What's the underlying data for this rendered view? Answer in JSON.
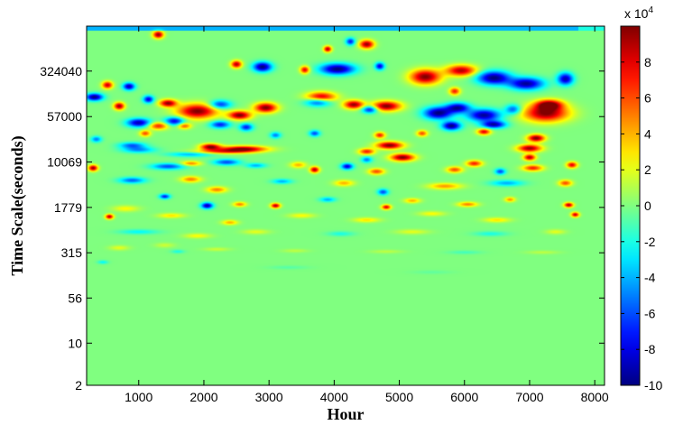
{
  "chart_data": {
    "type": "heatmap",
    "title": "",
    "xlabel": "Hour",
    "ylabel": "Time Scale(seconds)",
    "xlim": [
      200,
      8150
    ],
    "x_ticks": [
      1000,
      2000,
      3000,
      4000,
      5000,
      6000,
      7000,
      8000
    ],
    "x_tick_labels": [
      "1000",
      "2000",
      "3000",
      "4000",
      "5000",
      "6000",
      "7000",
      "8000"
    ],
    "y_scale": "log",
    "ylim": [
      2,
      1800000
    ],
    "y_ticks": [
      2,
      10,
      56,
      315,
      1779,
      10069,
      57000,
      324040
    ],
    "y_tick_labels": [
      "2",
      "10",
      "56",
      "315",
      "1779",
      "10069",
      "57000",
      "324040"
    ],
    "colorbar": {
      "colormap": "jet",
      "range": [
        -100000,
        100000
      ],
      "ticks": [
        8,
        6,
        4,
        2,
        0,
        -2,
        -4,
        -6,
        -8,
        -10
      ],
      "tick_labels": [
        "8",
        "6",
        "4",
        "2",
        "0",
        "-2",
        "-4",
        "-6",
        "-8",
        "-10"
      ],
      "multiplier_base": "x 10",
      "multiplier_exp": "4"
    },
    "background_value": 0,
    "blobs": [
      {
        "x": 1300,
        "y": 1300000,
        "rx": 80,
        "ry": 0.06,
        "v": 95000
      },
      {
        "x": 4500,
        "y": 900000,
        "rx": 110,
        "ry": 0.07,
        "v": 95000
      },
      {
        "x": 4250,
        "y": 1000000,
        "rx": 70,
        "ry": 0.06,
        "v": -70000
      },
      {
        "x": 3900,
        "y": 750000,
        "rx": 60,
        "ry": 0.05,
        "v": 90000
      },
      {
        "x": 2500,
        "y": 420000,
        "rx": 80,
        "ry": 0.06,
        "v": 90000
      },
      {
        "x": 2900,
        "y": 380000,
        "rx": 140,
        "ry": 0.08,
        "v": -100000
      },
      {
        "x": 3550,
        "y": 340000,
        "rx": 70,
        "ry": 0.06,
        "v": 80000
      },
      {
        "x": 4050,
        "y": 350000,
        "rx": 260,
        "ry": 0.09,
        "v": -100000
      },
      {
        "x": 4700,
        "y": 390000,
        "rx": 70,
        "ry": 0.06,
        "v": -80000
      },
      {
        "x": 5400,
        "y": 260000,
        "rx": 230,
        "ry": 0.12,
        "v": 100000
      },
      {
        "x": 5950,
        "y": 330000,
        "rx": 230,
        "ry": 0.09,
        "v": 90000
      },
      {
        "x": 6450,
        "y": 250000,
        "rx": 250,
        "ry": 0.11,
        "v": -100000
      },
      {
        "x": 6950,
        "y": 200000,
        "rx": 260,
        "ry": 0.1,
        "v": -95000
      },
      {
        "x": 7550,
        "y": 240000,
        "rx": 120,
        "ry": 0.1,
        "v": -90000
      },
      {
        "x": 5850,
        "y": 150000,
        "rx": 80,
        "ry": 0.06,
        "v": 70000
      },
      {
        "x": 850,
        "y": 180000,
        "rx": 90,
        "ry": 0.06,
        "v": -90000
      },
      {
        "x": 520,
        "y": 190000,
        "rx": 80,
        "ry": 0.06,
        "v": 85000
      },
      {
        "x": 320,
        "y": 120000,
        "rx": 130,
        "ry": 0.06,
        "v": -100000
      },
      {
        "x": 1150,
        "y": 110000,
        "rx": 80,
        "ry": 0.06,
        "v": -80000
      },
      {
        "x": 700,
        "y": 85000,
        "rx": 80,
        "ry": 0.06,
        "v": 95000
      },
      {
        "x": 1450,
        "y": 95000,
        "rx": 130,
        "ry": 0.06,
        "v": 95000
      },
      {
        "x": 1900,
        "y": 70000,
        "rx": 300,
        "ry": 0.12,
        "v": 100000
      },
      {
        "x": 2250,
        "y": 90000,
        "rx": 160,
        "ry": 0.07,
        "v": -70000
      },
      {
        "x": 2550,
        "y": 60000,
        "rx": 170,
        "ry": 0.07,
        "v": 100000
      },
      {
        "x": 2950,
        "y": 80000,
        "rx": 170,
        "ry": 0.08,
        "v": 100000
      },
      {
        "x": 3750,
        "y": 100000,
        "rx": 190,
        "ry": 0.07,
        "v": -70000
      },
      {
        "x": 3800,
        "y": 120000,
        "rx": 220,
        "ry": 0.08,
        "v": 90000
      },
      {
        "x": 4300,
        "y": 90000,
        "rx": 150,
        "ry": 0.07,
        "v": 95000
      },
      {
        "x": 4800,
        "y": 85000,
        "rx": 220,
        "ry": 0.08,
        "v": 100000
      },
      {
        "x": 4550,
        "y": 75000,
        "rx": 120,
        "ry": 0.06,
        "v": -80000
      },
      {
        "x": 5600,
        "y": 65000,
        "rx": 220,
        "ry": 0.1,
        "v": -100000
      },
      {
        "x": 5900,
        "y": 80000,
        "rx": 180,
        "ry": 0.08,
        "v": -90000
      },
      {
        "x": 6300,
        "y": 60000,
        "rx": 250,
        "ry": 0.1,
        "v": -95000
      },
      {
        "x": 5800,
        "y": 40000,
        "rx": 140,
        "ry": 0.07,
        "v": -100000
      },
      {
        "x": 6450,
        "y": 42000,
        "rx": 180,
        "ry": 0.06,
        "v": -90000
      },
      {
        "x": 6300,
        "y": 32000,
        "rx": 100,
        "ry": 0.05,
        "v": 80000
      },
      {
        "x": 7250,
        "y": 65000,
        "rx": 340,
        "ry": 0.14,
        "v": 100000
      },
      {
        "x": 7300,
        "y": 90000,
        "rx": 200,
        "ry": 0.08,
        "v": 95000
      },
      {
        "x": 6750,
        "y": 75000,
        "rx": 120,
        "ry": 0.08,
        "v": -60000
      },
      {
        "x": 1000,
        "y": 45000,
        "rx": 180,
        "ry": 0.07,
        "v": -90000
      },
      {
        "x": 1550,
        "y": 48000,
        "rx": 150,
        "ry": 0.07,
        "v": -80000
      },
      {
        "x": 1300,
        "y": 40000,
        "rx": 150,
        "ry": 0.06,
        "v": 70000
      },
      {
        "x": 1700,
        "y": 40000,
        "rx": 100,
        "ry": 0.05,
        "v": 60000
      },
      {
        "x": 2250,
        "y": 42000,
        "rx": 150,
        "ry": 0.06,
        "v": -70000
      },
      {
        "x": 2650,
        "y": 38000,
        "rx": 100,
        "ry": 0.06,
        "v": -70000
      },
      {
        "x": 1100,
        "y": 30000,
        "rx": 80,
        "ry": 0.05,
        "v": 60000
      },
      {
        "x": 3100,
        "y": 28000,
        "rx": 80,
        "ry": 0.05,
        "v": -50000
      },
      {
        "x": 3700,
        "y": 30000,
        "rx": 80,
        "ry": 0.05,
        "v": -60000
      },
      {
        "x": 4700,
        "y": 28000,
        "rx": 80,
        "ry": 0.05,
        "v": 70000
      },
      {
        "x": 5350,
        "y": 30000,
        "rx": 80,
        "ry": 0.05,
        "v": 60000
      },
      {
        "x": 7100,
        "y": 25000,
        "rx": 130,
        "ry": 0.06,
        "v": 100000
      },
      {
        "x": 7000,
        "y": 17000,
        "rx": 180,
        "ry": 0.06,
        "v": 95000
      },
      {
        "x": 7000,
        "y": 12000,
        "rx": 90,
        "ry": 0.05,
        "v": 90000
      },
      {
        "x": 350,
        "y": 24000,
        "rx": 80,
        "ry": 0.05,
        "v": -50000
      },
      {
        "x": 2100,
        "y": 18000,
        "rx": 150,
        "ry": 0.05,
        "v": 95000
      },
      {
        "x": 2600,
        "y": 16500,
        "rx": 350,
        "ry": 0.05,
        "v": 100000
      },
      {
        "x": 2250,
        "y": 15000,
        "rx": 400,
        "ry": 0.04,
        "v": 55000
      },
      {
        "x": 1800,
        "y": 13500,
        "rx": 350,
        "ry": 0.04,
        "v": -40000
      },
      {
        "x": 1000,
        "y": 16000,
        "rx": 250,
        "ry": 0.05,
        "v": -45000
      },
      {
        "x": 900,
        "y": 19000,
        "rx": 200,
        "ry": 0.05,
        "v": -55000
      },
      {
        "x": 4850,
        "y": 19000,
        "rx": 200,
        "ry": 0.06,
        "v": 100000
      },
      {
        "x": 5050,
        "y": 12000,
        "rx": 180,
        "ry": 0.06,
        "v": 100000
      },
      {
        "x": 4500,
        "y": 15000,
        "rx": 120,
        "ry": 0.05,
        "v": 70000
      },
      {
        "x": 4500,
        "y": 11000,
        "rx": 80,
        "ry": 0.05,
        "v": -50000
      },
      {
        "x": 1450,
        "y": 8500,
        "rx": 250,
        "ry": 0.05,
        "v": -60000
      },
      {
        "x": 1800,
        "y": 9500,
        "rx": 150,
        "ry": 0.04,
        "v": 50000
      },
      {
        "x": 2350,
        "y": 10000,
        "rx": 200,
        "ry": 0.05,
        "v": -60000
      },
      {
        "x": 2800,
        "y": 8800,
        "rx": 150,
        "ry": 0.04,
        "v": -40000
      },
      {
        "x": 300,
        "y": 8000,
        "rx": 70,
        "ry": 0.05,
        "v": 95000
      },
      {
        "x": 3450,
        "y": 9000,
        "rx": 120,
        "ry": 0.05,
        "v": 40000
      },
      {
        "x": 3700,
        "y": 7500,
        "rx": 70,
        "ry": 0.05,
        "v": 90000
      },
      {
        "x": 4200,
        "y": 8500,
        "rx": 90,
        "ry": 0.05,
        "v": -80000
      },
      {
        "x": 4650,
        "y": 7000,
        "rx": 120,
        "ry": 0.05,
        "v": 60000
      },
      {
        "x": 5850,
        "y": 7500,
        "rx": 120,
        "ry": 0.05,
        "v": 60000
      },
      {
        "x": 6150,
        "y": 9500,
        "rx": 120,
        "ry": 0.05,
        "v": 70000
      },
      {
        "x": 6550,
        "y": 7000,
        "rx": 80,
        "ry": 0.05,
        "v": -60000
      },
      {
        "x": 7050,
        "y": 8000,
        "rx": 150,
        "ry": 0.05,
        "v": 70000
      },
      {
        "x": 7650,
        "y": 9000,
        "rx": 80,
        "ry": 0.05,
        "v": 80000
      },
      {
        "x": 900,
        "y": 5000,
        "rx": 200,
        "ry": 0.05,
        "v": -55000
      },
      {
        "x": 1800,
        "y": 5200,
        "rx": 150,
        "ry": 0.05,
        "v": 50000
      },
      {
        "x": 2200,
        "y": 3500,
        "rx": 150,
        "ry": 0.05,
        "v": 50000
      },
      {
        "x": 3200,
        "y": 4800,
        "rx": 150,
        "ry": 0.04,
        "v": -40000
      },
      {
        "x": 4150,
        "y": 4500,
        "rx": 150,
        "ry": 0.05,
        "v": 40000
      },
      {
        "x": 4750,
        "y": 3200,
        "rx": 80,
        "ry": 0.05,
        "v": -60000
      },
      {
        "x": 5700,
        "y": 4000,
        "rx": 250,
        "ry": 0.05,
        "v": 45000
      },
      {
        "x": 6650,
        "y": 4500,
        "rx": 250,
        "ry": 0.05,
        "v": -40000
      },
      {
        "x": 7550,
        "y": 4500,
        "rx": 100,
        "ry": 0.05,
        "v": 60000
      },
      {
        "x": 1400,
        "y": 2700,
        "rx": 80,
        "ry": 0.04,
        "v": -70000
      },
      {
        "x": 2050,
        "y": 1900,
        "rx": 90,
        "ry": 0.05,
        "v": -90000
      },
      {
        "x": 2550,
        "y": 2000,
        "rx": 100,
        "ry": 0.04,
        "v": 50000
      },
      {
        "x": 3100,
        "y": 1900,
        "rx": 70,
        "ry": 0.04,
        "v": 90000
      },
      {
        "x": 3900,
        "y": 2400,
        "rx": 120,
        "ry": 0.04,
        "v": -40000
      },
      {
        "x": 4800,
        "y": 1800,
        "rx": 70,
        "ry": 0.04,
        "v": 80000
      },
      {
        "x": 5200,
        "y": 2300,
        "rx": 120,
        "ry": 0.04,
        "v": 40000
      },
      {
        "x": 6050,
        "y": 2000,
        "rx": 150,
        "ry": 0.04,
        "v": 50000
      },
      {
        "x": 6700,
        "y": 2400,
        "rx": 80,
        "ry": 0.04,
        "v": 45000
      },
      {
        "x": 7600,
        "y": 1950,
        "rx": 70,
        "ry": 0.04,
        "v": 90000
      },
      {
        "x": 550,
        "y": 1250,
        "rx": 60,
        "ry": 0.04,
        "v": 90000
      },
      {
        "x": 7700,
        "y": 1350,
        "rx": 60,
        "ry": 0.04,
        "v": 85000
      },
      {
        "x": 800,
        "y": 1700,
        "rx": 200,
        "ry": 0.05,
        "v": 25000
      },
      {
        "x": 1500,
        "y": 1300,
        "rx": 200,
        "ry": 0.04,
        "v": 30000
      },
      {
        "x": 2400,
        "y": 1000,
        "rx": 120,
        "ry": 0.04,
        "v": 40000
      },
      {
        "x": 3500,
        "y": 1300,
        "rx": 200,
        "ry": 0.04,
        "v": 25000
      },
      {
        "x": 4500,
        "y": 1100,
        "rx": 200,
        "ry": 0.04,
        "v": 30000
      },
      {
        "x": 5500,
        "y": 1400,
        "rx": 200,
        "ry": 0.04,
        "v": 25000
      },
      {
        "x": 6500,
        "y": 1100,
        "rx": 200,
        "ry": 0.04,
        "v": 30000
      },
      {
        "x": 1000,
        "y": 700,
        "rx": 300,
        "ry": 0.04,
        "v": -25000
      },
      {
        "x": 1900,
        "y": 600,
        "rx": 200,
        "ry": 0.04,
        "v": 25000
      },
      {
        "x": 2800,
        "y": 700,
        "rx": 200,
        "ry": 0.04,
        "v": 20000
      },
      {
        "x": 4100,
        "y": 650,
        "rx": 200,
        "ry": 0.04,
        "v": -20000
      },
      {
        "x": 5200,
        "y": 700,
        "rx": 250,
        "ry": 0.04,
        "v": 20000
      },
      {
        "x": 6400,
        "y": 650,
        "rx": 250,
        "ry": 0.04,
        "v": -20000
      },
      {
        "x": 7400,
        "y": 700,
        "rx": 150,
        "ry": 0.04,
        "v": 20000
      },
      {
        "x": 700,
        "y": 380,
        "rx": 150,
        "ry": 0.04,
        "v": 20000
      },
      {
        "x": 1400,
        "y": 420,
        "rx": 150,
        "ry": 0.04,
        "v": 15000
      },
      {
        "x": 1600,
        "y": 330,
        "rx": 100,
        "ry": 0.03,
        "v": -20000
      },
      {
        "x": 2200,
        "y": 360,
        "rx": 200,
        "ry": 0.03,
        "v": 15000
      },
      {
        "x": 3400,
        "y": 340,
        "rx": 200,
        "ry": 0.03,
        "v": 12000
      },
      {
        "x": 4800,
        "y": 330,
        "rx": 250,
        "ry": 0.03,
        "v": 12000
      },
      {
        "x": 6000,
        "y": 320,
        "rx": 250,
        "ry": 0.03,
        "v": -12000
      },
      {
        "x": 7200,
        "y": 320,
        "rx": 250,
        "ry": 0.03,
        "v": 12000
      },
      {
        "x": 450,
        "y": 220,
        "rx": 80,
        "ry": 0.03,
        "v": -25000
      },
      {
        "x": 3300,
        "y": 180,
        "rx": 300,
        "ry": 0.03,
        "v": -8000
      },
      {
        "x": 5500,
        "y": 150,
        "rx": 300,
        "ry": 0.03,
        "v": -6000
      }
    ],
    "bands": [
      {
        "y_from": 1500000,
        "y_to": 1800000,
        "x_from": 200,
        "x_to": 7750,
        "v": -40000
      },
      {
        "y_from": 1500000,
        "y_to": 1800000,
        "x_from": 7750,
        "x_to": 8150,
        "v": -20000
      }
    ]
  }
}
